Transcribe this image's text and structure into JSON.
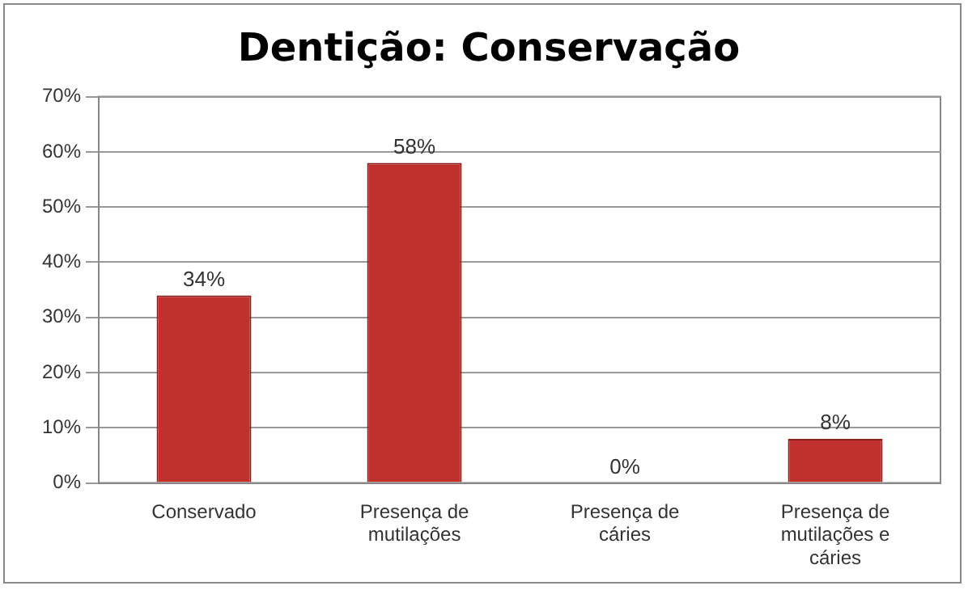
{
  "chart_data": {
    "type": "bar",
    "title": "Dentição: Conservação",
    "categories": [
      "Conservado",
      "Presença de mutilações",
      "Presença de cáries",
      "Presença de mutilações e cáries"
    ],
    "values": [
      34,
      58,
      0,
      8
    ],
    "color": "#c0302c",
    "value_labels": [
      "34%",
      "58%",
      "0%",
      "8%"
    ],
    "ylim": [
      0,
      70
    ],
    "yticks": [
      {
        "value": 0,
        "label": "0%"
      },
      {
        "value": 10,
        "label": "10%"
      },
      {
        "value": 20,
        "label": "20%"
      },
      {
        "value": 30,
        "label": "30%"
      },
      {
        "value": 40,
        "label": "40%"
      },
      {
        "value": 50,
        "label": "50%"
      },
      {
        "value": 60,
        "label": "60%"
      },
      {
        "value": 70,
        "label": "70%"
      }
    ],
    "grid": "y",
    "legend": false
  }
}
